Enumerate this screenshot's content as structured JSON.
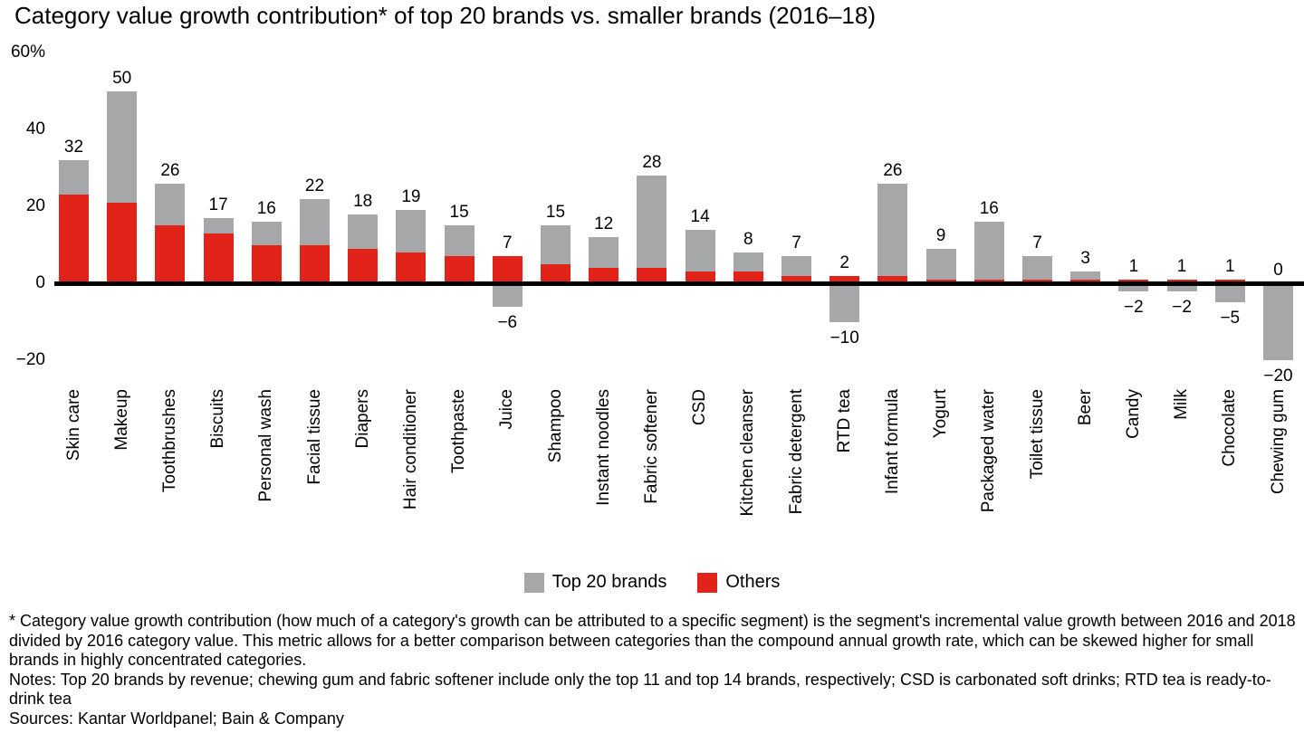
{
  "title": "Category value growth contribution* of top 20 brands vs. smaller brands (2016–18)",
  "chart_data": {
    "type": "bar",
    "stacked": true,
    "grid": false,
    "ylim": [
      -20,
      60
    ],
    "categories": [
      "Skin care",
      "Makeup",
      "Toothbrushes",
      "Biscuits",
      "Personal wash",
      "Facial tissue",
      "Diapers",
      "Hair conditioner",
      "Toothpaste",
      "Juice",
      "Shampoo",
      "Instant noodles",
      "Fabric softener",
      "CSD",
      "Kitchen cleanser",
      "Fabric detergent",
      "RTD tea",
      "Infant formula",
      "Yogurt",
      "Packaged water",
      "Toilet tissue",
      "Beer",
      "Candy",
      "Milk",
      "Chocolate",
      "Chewing gum"
    ],
    "series": [
      {
        "name": "Others",
        "color": "#e2231a",
        "values": [
          23,
          21,
          15,
          13,
          10,
          10,
          9,
          8,
          7,
          7,
          5,
          4,
          4,
          3,
          3,
          2,
          2,
          2,
          1,
          1,
          1,
          1,
          1,
          1,
          1,
          0
        ]
      },
      {
        "name": "Top 20 brands",
        "color": "#a6a7a9",
        "values": [
          9,
          29,
          11,
          4,
          6,
          12,
          9,
          11,
          8,
          -6,
          10,
          8,
          24,
          11,
          5,
          5,
          -10,
          24,
          8,
          15,
          6,
          2,
          -2,
          -2,
          -5,
          -20
        ]
      }
    ],
    "bar_labels": {
      "positive": [
        "32",
        "50",
        "26",
        "17",
        "16",
        "22",
        "18",
        "19",
        "15",
        "7",
        "15",
        "12",
        "28",
        "14",
        "8",
        "7",
        "2",
        "26",
        "9",
        "16",
        "7",
        "3",
        "1",
        "1",
        "1",
        "0"
      ],
      "negative": [
        null,
        null,
        null,
        null,
        null,
        null,
        null,
        null,
        null,
        "−6",
        null,
        null,
        null,
        null,
        null,
        null,
        "−10",
        null,
        null,
        null,
        null,
        null,
        "−2",
        "−2",
        "−5",
        "−20"
      ]
    },
    "yticks": [
      {
        "label": "60%",
        "value": 60
      },
      {
        "label": "40",
        "value": 40
      },
      {
        "label": "20",
        "value": 20
      },
      {
        "label": "0",
        "value": 0
      },
      {
        "label": "−20",
        "value": -20
      }
    ],
    "legend": [
      {
        "label": "Top 20 brands",
        "color": "#a6a7a9"
      },
      {
        "label": "Others",
        "color": "#e2231a"
      }
    ],
    "legend_position": "bottom-center"
  },
  "footnotes": {
    "definition": "* Category value growth contribution (how much of a category's growth can be attributed to a specific segment) is the segment's incremental value growth between 2016 and 2018 divided by 2016 category value. This metric allows for a better comparison between categories than the compound annual growth rate, which can be skewed higher for small brands in highly concentrated categories.",
    "notes": "Notes: Top 20 brands by revenue; chewing gum and fabric softener include only the top 11 and top 14 brands, respectively; CSD is carbonated soft drinks; RTD tea is ready-to-drink tea",
    "sources": "Sources: Kantar Worldpanel; Bain & Company"
  }
}
